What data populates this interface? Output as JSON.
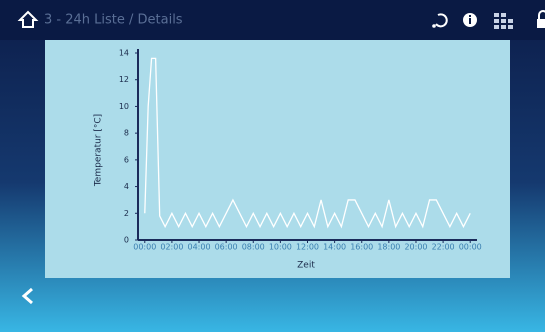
{
  "header": {
    "title": "3 - 24h Liste / Details"
  },
  "chart_data": {
    "type": "line",
    "xlabel": "Zeit",
    "ylabel": "Temperatur [°C]",
    "x": [
      0,
      0.25,
      0.5,
      0.8,
      1.1,
      1.5,
      2,
      2.5,
      3,
      3.5,
      4,
      4.5,
      5,
      5.5,
      6,
      6.5,
      7,
      7.5,
      8,
      8.5,
      9,
      9.5,
      10,
      10.5,
      11,
      11.5,
      12,
      12.5,
      13,
      13.5,
      14,
      14.5,
      15,
      15.5,
      16,
      16.5,
      17,
      17.5,
      18,
      18.5,
      19,
      19.5,
      20,
      20.5,
      21,
      21.5,
      22,
      22.5,
      23,
      23.5,
      24
    ],
    "values": [
      2,
      10,
      13.6,
      13.6,
      1.8,
      1,
      2,
      1,
      2,
      1,
      2,
      1,
      2,
      1,
      2,
      3,
      2,
      1,
      2,
      1,
      2,
      1,
      2,
      1,
      2,
      1,
      2,
      1,
      3,
      1,
      2,
      1,
      3,
      3,
      2,
      1,
      2,
      1,
      3,
      1,
      2,
      1,
      2,
      1,
      3,
      3,
      2,
      1,
      2,
      1,
      2
    ],
    "color": "#ffffff",
    "xlim": [
      -0.5,
      24.5
    ],
    "xticks": [
      {
        "value": 0,
        "label": "00:00"
      },
      {
        "value": 2,
        "label": "02:00"
      },
      {
        "value": 4,
        "label": "04:00"
      },
      {
        "value": 6,
        "label": "06:00"
      },
      {
        "value": 8,
        "label": "08:00"
      },
      {
        "value": 10,
        "label": "10:00"
      },
      {
        "value": 12,
        "label": "12:00"
      },
      {
        "value": 14,
        "label": "14:00"
      },
      {
        "value": 16,
        "label": "16:00"
      },
      {
        "value": 18,
        "label": "18:00"
      },
      {
        "value": 20,
        "label": "20:00"
      },
      {
        "value": 22,
        "label": "22:00"
      },
      {
        "value": 24,
        "label": "00:00"
      }
    ],
    "ylim": [
      0,
      14
    ],
    "yticks": [
      0,
      2,
      4,
      6,
      8,
      10,
      12,
      14
    ]
  }
}
